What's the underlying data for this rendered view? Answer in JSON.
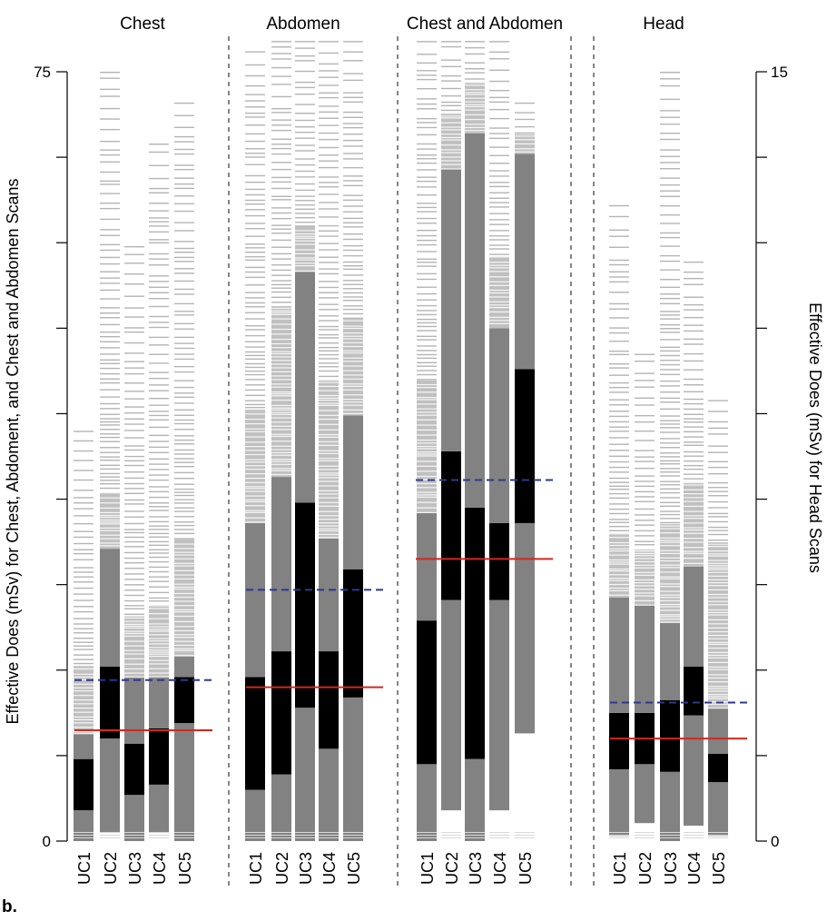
{
  "panel_label": "b.",
  "chart_data": {
    "type": "bar",
    "description_of_encoding": "",
    "groups": [
      {
        "name": "Chest",
        "axis": "left",
        "categories": [
          "UC1",
          "UC2",
          "UC3",
          "UC4",
          "UC5"
        ],
        "series": [
          {
            "category": "UC1",
            "min": 0,
            "p25": 3,
            "p50": 8,
            "p75": 10.5,
            "p90": 17,
            "max": 40,
            "mean_red": 10.8,
            "mean_blue": 15.7
          },
          {
            "category": "UC2",
            "min": 0.8,
            "p25": 10,
            "p50": 17,
            "p75": 28.5,
            "p90": 34,
            "max": 75
          },
          {
            "category": "UC3",
            "min": 0,
            "p25": 4.5,
            "p50": 9.5,
            "p75": 16,
            "p90": 22,
            "max": 58
          },
          {
            "category": "UC4",
            "min": 0.8,
            "p25": 5.5,
            "p50": 11,
            "p75": 16,
            "p90": 23,
            "max": 68
          },
          {
            "category": "UC5",
            "min": 0,
            "p25": 11.5,
            "p50": 16,
            "p75": 18,
            "p90": 29.5,
            "max": 72
          }
        ],
        "mean_red": 10.8,
        "mean_blue": 15.7
      },
      {
        "name": "Abdomen",
        "axis": "left",
        "categories": [
          "UC1",
          "UC2",
          "UC3",
          "UC4",
          "UC5"
        ],
        "series": [
          {
            "category": "UC1",
            "min": 0,
            "p25": 5,
            "p50": 16,
            "p75": 31,
            "p90": 42,
            "max": 77
          },
          {
            "category": "UC2",
            "min": 0,
            "p25": 6.5,
            "p50": 18.5,
            "p75": 35.5,
            "p90": 52,
            "max": 78
          },
          {
            "category": "UC3",
            "min": 0,
            "p25": 13,
            "p50": 33,
            "p75": 55.5,
            "p90": 60,
            "max": 78
          },
          {
            "category": "UC4",
            "min": 0,
            "p25": 9,
            "p50": 18.5,
            "p75": 29.5,
            "p90": 45,
            "max": 78
          },
          {
            "category": "UC5",
            "min": 0,
            "p25": 14,
            "p50": 26.5,
            "p75": 41.5,
            "p90": 51,
            "max": 78
          }
        ],
        "mean_red": 15,
        "mean_blue": 24.5
      },
      {
        "name": "Chest and Abdomen",
        "axis": "left",
        "categories": [
          "UC1",
          "UC2",
          "UC3",
          "UC4",
          "UC5"
        ],
        "series": [
          {
            "category": "UC1",
            "min": 0,
            "p25": 7.5,
            "p50": 21.5,
            "p75": 32,
            "p90": 45,
            "max": 78
          },
          {
            "category": "UC2",
            "min": 3,
            "p25": 23.5,
            "p50": 38,
            "p75": 65.5,
            "p90": 71,
            "max": 78
          },
          {
            "category": "UC3",
            "min": 0,
            "p25": 8,
            "p50": 32.5,
            "p75": 69,
            "p90": 74,
            "max": 78
          },
          {
            "category": "UC4",
            "min": 3,
            "p25": 23.5,
            "p50": 31,
            "p75": 50,
            "p90": 57,
            "max": 78
          },
          {
            "category": "UC5",
            "min": 10.5,
            "p25": 31,
            "p50": 46,
            "p75": 67,
            "p90": 69,
            "max": 72
          }
        ],
        "mean_red": 27.5,
        "mean_blue": 35.2
      },
      {
        "name": "Head",
        "axis": "right",
        "categories": [
          "UC1",
          "UC2",
          "UC3",
          "UC4",
          "UC5"
        ],
        "series": [
          {
            "category": "UC1",
            "min": 0.1,
            "p25": 1.4,
            "p50": 2.5,
            "p75": 4.75,
            "p90": 6,
            "max": 12.4
          },
          {
            "category": "UC2",
            "min": 0.35,
            "p25": 1.5,
            "p50": 2.5,
            "p75": 4.6,
            "p90": 5.7,
            "max": 9.5
          },
          {
            "category": "UC3",
            "min": 0,
            "p25": 1.35,
            "p50": 2.75,
            "p75": 4.25,
            "p90": 6.2,
            "max": 15
          },
          {
            "category": "UC4",
            "min": 0.3,
            "p25": 2.45,
            "p50": 3.4,
            "p75": 5.35,
            "p90": 7,
            "max": 11.3
          },
          {
            "category": "UC5",
            "min": 0.1,
            "p25": 1.15,
            "p50": 1.7,
            "p75": 2.6,
            "p90": 5.8,
            "max": 8.6
          }
        ],
        "mean_red": 2.0,
        "mean_blue": 2.7
      }
    ],
    "left_axis": {
      "label": "Effective Does (mSv) for Chest, Abdoment, and Chest and Abdomen Scans",
      "ylim": [
        0,
        75
      ],
      "tick_labels": [
        "0",
        "75"
      ]
    },
    "right_axis": {
      "label": "Effective Does (mSv) for Head Scans",
      "ylim": [
        0,
        15
      ],
      "tick_labels": [
        "0",
        "15"
      ]
    },
    "colors": {
      "light": "#c0c0c0",
      "mid": "#828282",
      "dark": "#000000",
      "red_line": "#d7261e",
      "blue_dash": "#2b3990",
      "scan_line": "#b4b4b4"
    }
  }
}
